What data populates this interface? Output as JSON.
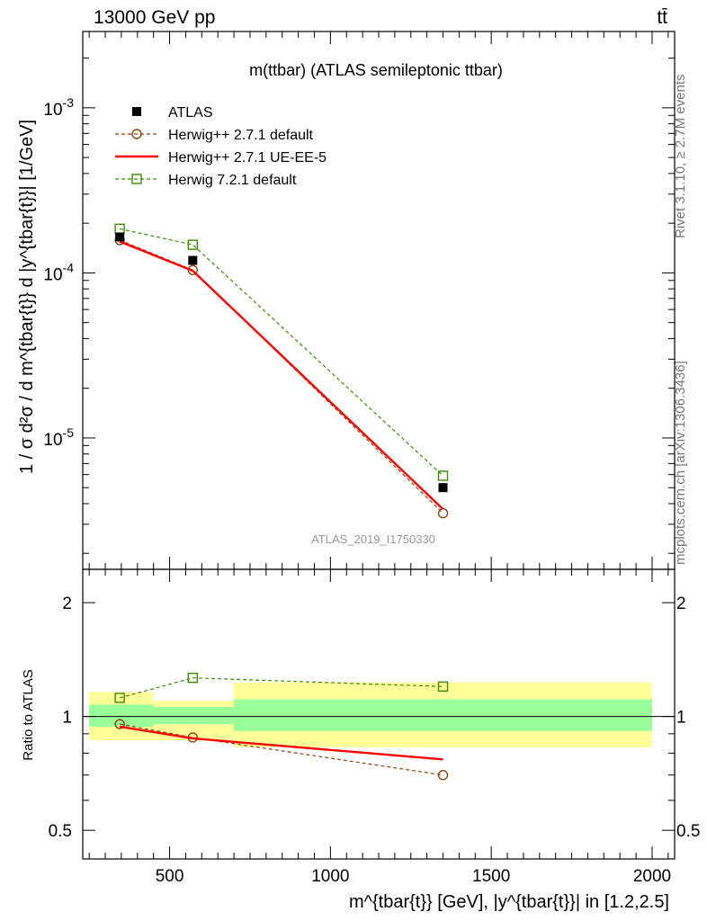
{
  "header": {
    "left": "13000 GeV pp",
    "right": "tt̄"
  },
  "side": {
    "rivet": "Rivet 3.1.10, ≥ 2.7M events",
    "mcplots": "mcplots.cern.ch [arXiv:1306.3436]"
  },
  "colors": {
    "atlas": "#000000",
    "herwig_default": "#8b4513",
    "herwig_ueee5": "#ff0000",
    "herwig72": "#3c8c00",
    "band_outer": "#ffff99",
    "band_inner": "#99ff99"
  },
  "chart_data": [
    {
      "type": "line",
      "title": "m(ttbar) (ATLAS semileptonic ttbar)",
      "watermark": "ATLAS_2019_I1750330",
      "ylabel": "1 / σ d²σ / d m^{tbar{t}} d |y^{tbar{t}}| [1/GeV]",
      "yscale": "log",
      "ylim": [
        1.6e-06,
        0.0029
      ],
      "xlim": [
        230,
        2070
      ],
      "ytick_labels": [
        "10^{-5}",
        "10^{-4}",
        "10^{-3}"
      ],
      "grid": false,
      "legend_position": "top-left",
      "series": [
        {
          "name": "ATLAS",
          "x": [
            345,
            572,
            1350
          ],
          "values": [
            0.000165,
            0.000119,
            5e-06
          ],
          "marker": "filled-square"
        },
        {
          "name": "Herwig++ 2.7.1 default",
          "x": [
            345,
            572,
            1350
          ],
          "values": [
            0.000158,
            0.000104,
            3.5e-06
          ],
          "marker": "open-circle",
          "style": "dashed"
        },
        {
          "name": "Herwig++ 2.7.1 UE-EE-5",
          "x": [
            345,
            572,
            1350
          ],
          "values": [
            0.000155,
            0.000103,
            3.7e-06
          ],
          "marker": "none",
          "style": "solid"
        },
        {
          "name": "Herwig 7.2.1 default",
          "x": [
            345,
            572,
            1350
          ],
          "values": [
            0.000185,
            0.000148,
            5.9e-06
          ],
          "marker": "open-square",
          "style": "dashed"
        }
      ]
    },
    {
      "type": "line",
      "ylabel": "Ratio to ATLAS",
      "xlabel": "m^{tbar{t}} [GeV], |y^{tbar{t}}| in [1.2,2.5]",
      "yscale": "log",
      "ylim": [
        0.42,
        2.45
      ],
      "xlim": [
        230,
        2070
      ],
      "xtick_labels": [
        "500",
        "1000",
        "1500",
        "2000"
      ],
      "ytick_labels": [
        "0.5",
        "1",
        "2"
      ],
      "reference_line": 1,
      "uncertainty_bands": [
        {
          "x_range": [
            250,
            450
          ],
          "outer": [
            0.865,
            1.16
          ],
          "inner": [
            0.94,
            1.075
          ]
        },
        {
          "x_range": [
            450,
            700
          ],
          "outer": [
            0.865,
            1.1
          ],
          "inner": [
            0.955,
            1.06
          ]
        },
        {
          "x_range": [
            700,
            2000
          ],
          "outer": [
            0.83,
            1.23
          ],
          "inner": [
            0.915,
            1.11
          ]
        }
      ],
      "series": [
        {
          "name": "Herwig++ 2.7.1 default",
          "x": [
            345,
            572,
            1350
          ],
          "values": [
            0.955,
            0.88,
            0.7
          ]
        },
        {
          "name": "Herwig++ 2.7.1 UE-EE-5",
          "x": [
            345,
            572,
            1350
          ],
          "values": [
            0.94,
            0.875,
            0.77
          ]
        },
        {
          "name": "Herwig 7.2.1 default",
          "x": [
            345,
            572,
            1350
          ],
          "values": [
            1.12,
            1.265,
            1.2
          ]
        }
      ]
    }
  ]
}
